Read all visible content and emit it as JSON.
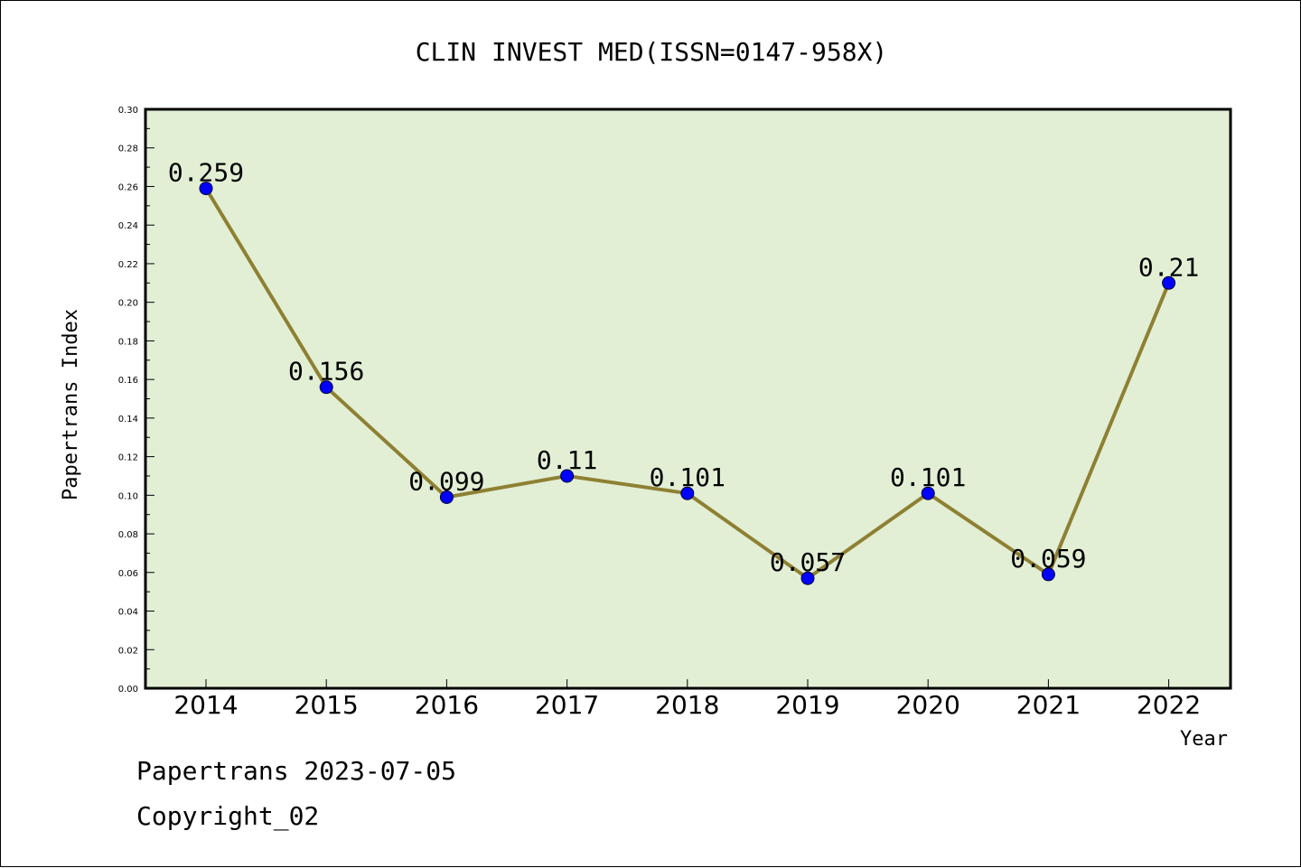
{
  "chart_data": {
    "type": "line",
    "title": "CLIN INVEST MED(ISSN=0147-958X)",
    "xlabel": "Year",
    "ylabel": "Papertrans Index",
    "categories": [
      "2014",
      "2015",
      "2016",
      "2017",
      "2018",
      "2019",
      "2020",
      "2021",
      "2022"
    ],
    "values": [
      0.259,
      0.156,
      0.099,
      0.11,
      0.101,
      0.057,
      0.101,
      0.059,
      0.21
    ],
    "data_labels": [
      "0.259",
      "0.156",
      "0.099",
      "0.11",
      "0.101",
      "0.057",
      "0.101",
      "0.059",
      "0.21"
    ],
    "ylim": [
      0,
      0.3
    ],
    "yticks": [
      "0.00",
      "0.02",
      "0.04",
      "0.06",
      "0.08",
      "0.10",
      "0.12",
      "0.14",
      "0.16",
      "0.18",
      "0.20",
      "0.22",
      "0.24",
      "0.26",
      "0.28",
      "0.30"
    ],
    "grid": false,
    "colors": {
      "plot_background": "#e2efd5",
      "line": "#8e8033",
      "marker": "#0000ff"
    }
  },
  "footer": {
    "line1": "Papertrans 2023-07-05",
    "line2": "Copyright_02"
  }
}
